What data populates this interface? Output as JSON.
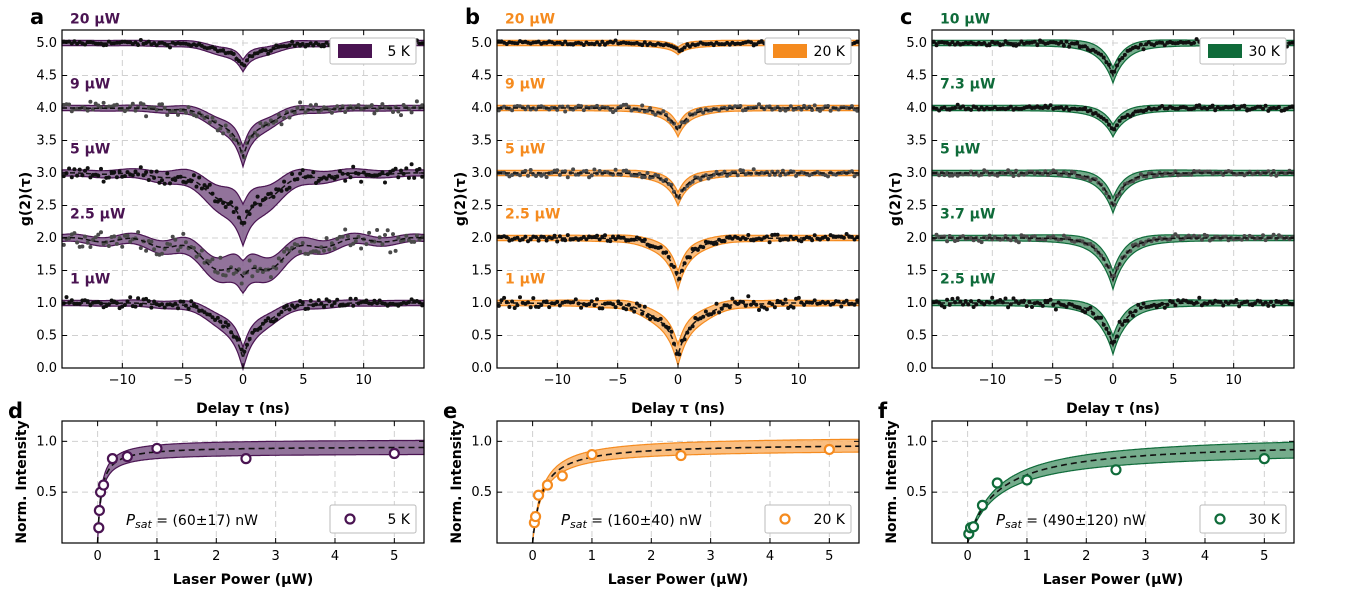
{
  "panels_top": [
    {
      "letter": "a",
      "legend": "5 K",
      "color": "#4a1452",
      "band": "#7f5a8a",
      "ylabel": "g(2)(τ)",
      "xlabel": "Delay τ (ns)",
      "xticks": [
        "−10",
        "−5",
        "0",
        "5",
        "10"
      ],
      "yticks": [
        "0.0",
        "0.5",
        "1.0",
        "1.5",
        "2.0",
        "2.5",
        "3.0",
        "3.5",
        "4.0",
        "4.5",
        "5.0"
      ],
      "traces": [
        {
          "label": "20 μW",
          "offset": 4,
          "depth": 0.35,
          "osc": 0.22,
          "width": 1.1,
          "noise": 0.04
        },
        {
          "label": "9 μW",
          "offset": 3,
          "depth": 0.75,
          "osc": 0.35,
          "width": 1.2,
          "noise": 0.09
        },
        {
          "label": "5 μW",
          "offset": 2,
          "depth": 0.8,
          "osc": 0.45,
          "width": 1.6,
          "noise": 0.1
        },
        {
          "label": "2.5 μW",
          "offset": 1,
          "depth": 0.6,
          "osc": 0.55,
          "width": 2.2,
          "noise": 0.16
        },
        {
          "label": "1 μW",
          "offset": 0,
          "depth": 0.85,
          "osc": 0.3,
          "width": 1.3,
          "noise": 0.08
        }
      ]
    },
    {
      "letter": "b",
      "legend": "20 K",
      "color": "#f58b1f",
      "band": "#f9b36a",
      "ylabel": "g(2)(τ)",
      "xlabel": "Delay τ (ns)",
      "xticks": [
        "−10",
        "−5",
        "0",
        "5",
        "10"
      ],
      "yticks": [
        "0.0",
        "0.5",
        "1.0",
        "1.5",
        "2.0",
        "2.5",
        "3.0",
        "3.5",
        "4.0",
        "4.5",
        "5.0"
      ],
      "traces": [
        {
          "label": "20 μW",
          "offset": 4,
          "depth": 0.12,
          "osc": 0.03,
          "width": 0.8,
          "noise": 0.03
        },
        {
          "label": "9 μW",
          "offset": 3,
          "depth": 0.35,
          "osc": 0.05,
          "width": 0.9,
          "noise": 0.05
        },
        {
          "label": "5 μW",
          "offset": 2,
          "depth": 0.4,
          "osc": 0.05,
          "width": 0.9,
          "noise": 0.05
        },
        {
          "label": "2.5 μW",
          "offset": 1,
          "depth": 0.65,
          "osc": 0.12,
          "width": 1.0,
          "noise": 0.06
        },
        {
          "label": "1 μW",
          "offset": 0,
          "depth": 0.8,
          "osc": 0.2,
          "width": 1.2,
          "noise": 0.09
        }
      ]
    },
    {
      "letter": "c",
      "legend": "30 K",
      "color": "#0f6b3a",
      "band": "#5d9d78",
      "ylabel": "g(2)(τ)",
      "xlabel": "Delay τ (ns)",
      "xticks": [
        "−10",
        "−5",
        "0",
        "5",
        "10"
      ],
      "yticks": [
        "0.0",
        "0.5",
        "1.0",
        "1.5",
        "2.0",
        "2.5",
        "3.0",
        "3.5",
        "4.0",
        "4.5",
        "5.0"
      ],
      "traces": [
        {
          "label": "10 μW",
          "offset": 4,
          "depth": 0.5,
          "osc": 0.0,
          "width": 1.0,
          "noise": 0.04
        },
        {
          "label": "7.3 μW",
          "offset": 3,
          "depth": 0.35,
          "osc": 0.0,
          "width": 1.0,
          "noise": 0.04
        },
        {
          "label": "5 μW",
          "offset": 2,
          "depth": 0.5,
          "osc": 0.0,
          "width": 1.0,
          "noise": 0.04
        },
        {
          "label": "3.7 μW",
          "offset": 1,
          "depth": 0.65,
          "osc": 0.0,
          "width": 1.1,
          "noise": 0.05
        },
        {
          "label": "2.5 μW",
          "offset": 0,
          "depth": 0.65,
          "osc": 0.0,
          "width": 1.1,
          "noise": 0.07
        }
      ]
    }
  ],
  "panels_bottom": [
    {
      "letter": "d",
      "legend": "5 K",
      "color": "#4a1452",
      "band": "#7f5a8a",
      "psat_label": "P",
      "psat_sub": "sat",
      "psat_value": " = (60±17) nW",
      "psat_uw": 0.06,
      "imax": 0.95,
      "band_lo": 0.88,
      "band_hi": 1.02,
      "xlabel": "Laser Power (μW)",
      "ylabel": "Norm. Intensity",
      "xticks": [
        "0",
        "1",
        "2",
        "3",
        "4",
        "5"
      ],
      "yticks": [
        "0.5",
        "1.0"
      ],
      "points": [
        [
          0.02,
          0.15
        ],
        [
          0.03,
          0.32
        ],
        [
          0.05,
          0.5
        ],
        [
          0.1,
          0.57
        ],
        [
          0.25,
          0.83
        ],
        [
          0.5,
          0.85
        ],
        [
          1.0,
          0.93
        ],
        [
          2.5,
          0.83
        ],
        [
          5.0,
          0.88
        ]
      ]
    },
    {
      "letter": "e",
      "legend": "20 K",
      "color": "#f58b1f",
      "band": "#f9b36a",
      "psat_label": "P",
      "psat_sub": "sat",
      "psat_value": " = (160±40) nW",
      "psat_uw": 0.16,
      "imax": 0.98,
      "band_lo": 0.92,
      "band_hi": 1.05,
      "xlabel": "Laser Power (μW)",
      "ylabel": "Norm. Intensity",
      "xticks": [
        "0",
        "1",
        "2",
        "3",
        "4",
        "5"
      ],
      "yticks": [
        "0.5",
        "1.0"
      ],
      "points": [
        [
          0.03,
          0.2
        ],
        [
          0.05,
          0.26
        ],
        [
          0.1,
          0.47
        ],
        [
          0.25,
          0.57
        ],
        [
          0.5,
          0.66
        ],
        [
          1.0,
          0.87
        ],
        [
          2.5,
          0.86
        ],
        [
          5.0,
          0.92
        ]
      ]
    },
    {
      "letter": "f",
      "legend": "30 K",
      "color": "#0f6b3a",
      "band": "#5d9d78",
      "psat_label": "P",
      "psat_sub": "sat",
      "psat_value": " = (490±120) nW",
      "psat_uw": 0.49,
      "imax": 1.0,
      "band_lo": 0.91,
      "band_hi": 1.08,
      "xlabel": "Laser Power (μW)",
      "ylabel": "Norm. Intensity",
      "xticks": [
        "0",
        "1",
        "2",
        "3",
        "4",
        "5"
      ],
      "yticks": [
        "0.5",
        "1.0"
      ],
      "points": [
        [
          0.02,
          0.09
        ],
        [
          0.05,
          0.15
        ],
        [
          0.1,
          0.16
        ],
        [
          0.25,
          0.37
        ],
        [
          0.5,
          0.59
        ],
        [
          1.0,
          0.62
        ],
        [
          2.5,
          0.72
        ],
        [
          5.0,
          0.83
        ]
      ]
    }
  ],
  "chart_data": [
    {
      "type": "scatter",
      "title": "a",
      "xlabel": "Delay τ (ns)",
      "ylabel": "g(2)(τ)",
      "xlim": [
        -15,
        15
      ],
      "ylim": [
        0,
        5.2
      ],
      "legend": "5 K",
      "series": [
        {
          "name": "1 μW",
          "offset": 0,
          "min_value": 0.15
        },
        {
          "name": "2.5 μW",
          "offset": 1,
          "min_value": 1.4
        },
        {
          "name": "5 μW",
          "offset": 2,
          "min_value": 2.2
        },
        {
          "name": "9 μW",
          "offset": 3,
          "min_value": 3.25
        },
        {
          "name": "20 μW",
          "offset": 4,
          "min_value": 4.65
        }
      ]
    },
    {
      "type": "scatter",
      "title": "b",
      "xlabel": "Delay τ (ns)",
      "ylabel": "g(2)(τ)",
      "xlim": [
        -15,
        15
      ],
      "ylim": [
        0,
        5.2
      ],
      "legend": "20 K",
      "series": [
        {
          "name": "1 μW",
          "offset": 0,
          "min_value": 0.2
        },
        {
          "name": "2.5 μW",
          "offset": 1,
          "min_value": 1.35
        },
        {
          "name": "5 μW",
          "offset": 2,
          "min_value": 2.6
        },
        {
          "name": "9 μW",
          "offset": 3,
          "min_value": 3.65
        },
        {
          "name": "20 μW",
          "offset": 4,
          "min_value": 4.88
        }
      ]
    },
    {
      "type": "scatter",
      "title": "c",
      "xlabel": "Delay τ (ns)",
      "ylabel": "g(2)(τ)",
      "xlim": [
        -15,
        15
      ],
      "ylim": [
        0,
        5.2
      ],
      "legend": "30 K",
      "series": [
        {
          "name": "2.5 μW",
          "offset": 0,
          "min_value": 0.35
        },
        {
          "name": "3.7 μW",
          "offset": 1,
          "min_value": 1.35
        },
        {
          "name": "5 μW",
          "offset": 2,
          "min_value": 2.5
        },
        {
          "name": "7.3 μW",
          "offset": 3,
          "min_value": 3.65
        },
        {
          "name": "10 μW",
          "offset": 4,
          "min_value": 4.5
        }
      ]
    },
    {
      "type": "scatter",
      "title": "d",
      "xlabel": "Laser Power (μW)",
      "ylabel": "Norm. Intensity",
      "xlim": [
        -0.6,
        5.5
      ],
      "ylim": [
        0,
        1.2
      ],
      "legend": "5 K",
      "annotation": "Psat = (60±17) nW",
      "x": [
        0.02,
        0.03,
        0.05,
        0.1,
        0.25,
        0.5,
        1.0,
        2.5,
        5.0
      ],
      "y": [
        0.15,
        0.32,
        0.5,
        0.57,
        0.83,
        0.85,
        0.93,
        0.83,
        0.88
      ]
    },
    {
      "type": "scatter",
      "title": "e",
      "xlabel": "Laser Power (μW)",
      "ylabel": "Norm. Intensity",
      "xlim": [
        -0.6,
        5.5
      ],
      "ylim": [
        0,
        1.2
      ],
      "legend": "20 K",
      "annotation": "Psat = (160±40) nW",
      "x": [
        0.03,
        0.05,
        0.1,
        0.25,
        0.5,
        1.0,
        2.5,
        5.0
      ],
      "y": [
        0.2,
        0.26,
        0.47,
        0.57,
        0.66,
        0.87,
        0.86,
        0.92
      ]
    },
    {
      "type": "scatter",
      "title": "f",
      "xlabel": "Laser Power (μW)",
      "ylabel": "Norm. Intensity",
      "xlim": [
        -0.6,
        5.5
      ],
      "ylim": [
        0,
        1.2
      ],
      "legend": "30 K",
      "annotation": "Psat = (490±120) nW",
      "x": [
        0.02,
        0.05,
        0.1,
        0.25,
        0.5,
        1.0,
        2.5,
        5.0
      ],
      "y": [
        0.09,
        0.15,
        0.16,
        0.37,
        0.59,
        0.62,
        0.72,
        0.83
      ]
    }
  ]
}
